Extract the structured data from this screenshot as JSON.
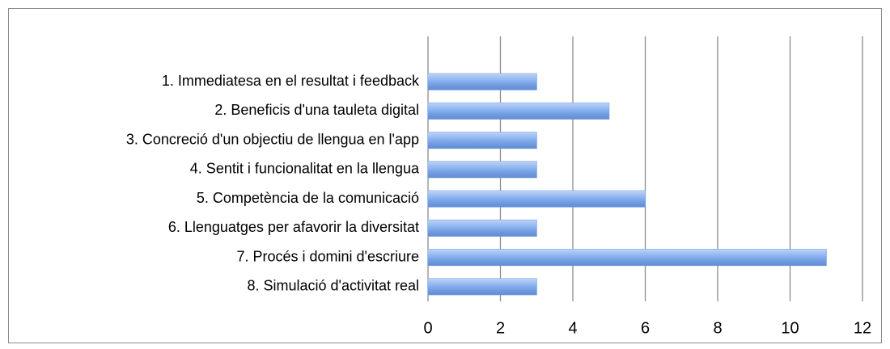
{
  "chart_data": {
    "type": "bar",
    "orientation": "horizontal",
    "categories": [
      "1. Immediatesa en el resultat i feedback",
      "2. Beneficis d'una tauleta digital",
      "3. Concreció d'un objectiu de llengua en l'app",
      "4. Sentit i funcionalitat en la llengua",
      "5. Competència de la comunicació",
      "6. Llenguatges per afavorir la diversitat",
      "7. Procés i domini d'escriure",
      "8. Simulació d'activitat real"
    ],
    "values": [
      3,
      5,
      3,
      3,
      6,
      3,
      11,
      3
    ],
    "color": "#6d9eeb",
    "xlim": [
      0,
      12
    ],
    "xticks": [
      0,
      2,
      4,
      6,
      8,
      10,
      12
    ],
    "grid": true
  }
}
